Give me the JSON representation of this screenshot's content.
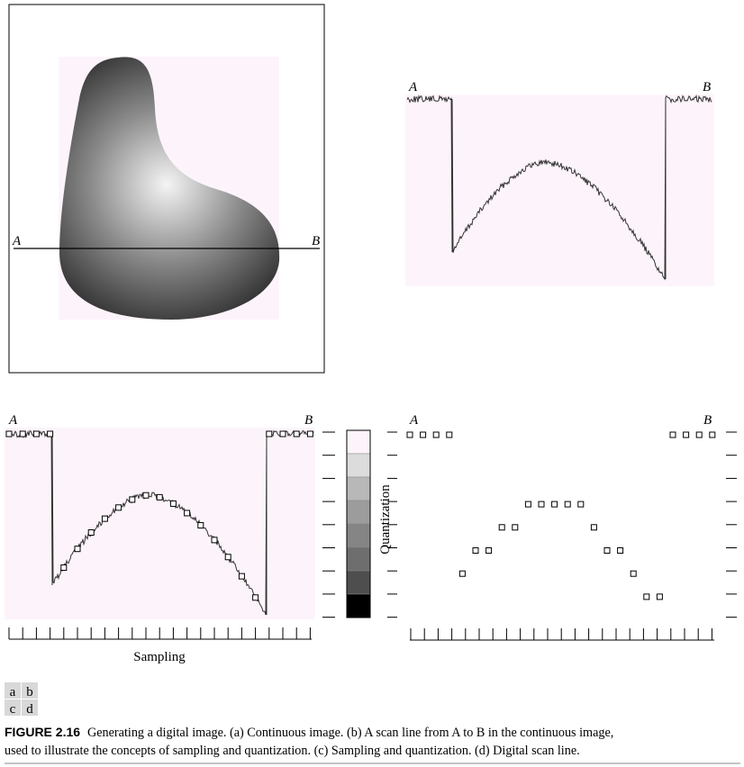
{
  "panel_a": {
    "label_a": "A",
    "label_b": "B"
  },
  "panel_b": {
    "label_a": "A",
    "label_b": "B"
  },
  "panel_c": {
    "label_a": "A",
    "label_b": "B",
    "x_label": "Sampling",
    "y_label": "Quantization"
  },
  "panel_d": {
    "label_a": "A",
    "label_b": "B"
  },
  "panel_key": [
    [
      "a",
      "b"
    ],
    [
      "c",
      "d"
    ]
  ],
  "caption": {
    "label": "FIGURE 2.16",
    "line1": "Generating a digital image. (a) Continuous image. (b) A scan line from A to B in the continuous image,",
    "line2": "used to illustrate the concepts of sampling and quantization. (c) Sampling and quantization. (d) Digital scan line."
  }
}
